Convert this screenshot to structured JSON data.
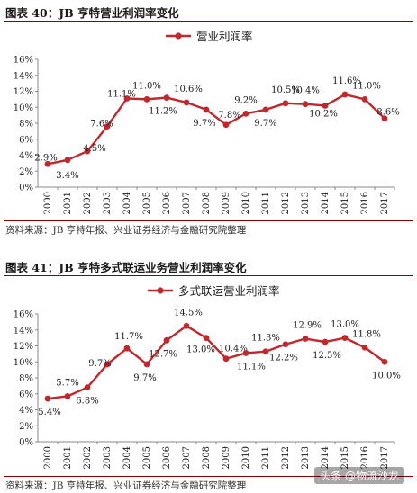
{
  "figures": [
    {
      "title": "图表 40：JB 亨特营业利润率变化",
      "source": "资料来源：JB 亨特年报、兴业证券经济与金融研究院整理"
    },
    {
      "title": "图表 41：JB 亨特多式联运业务营业利润率变化",
      "source": "资料来源：JB 亨特年报、兴业证券经济与金融研究院整理"
    }
  ],
  "watermark": "头条 @物流沙龙",
  "colors": {
    "series": "#c0282d",
    "axis": "#888888",
    "rule": "#8b0000"
  },
  "chart_data": [
    {
      "type": "line",
      "legend_position": "top",
      "grid": false,
      "categories": [
        "2000",
        "2001",
        "2002",
        "2003",
        "2004",
        "2005",
        "2006",
        "2007",
        "2008",
        "2009",
        "2010",
        "2011",
        "2012",
        "2013",
        "2014",
        "2015",
        "2016",
        "2017"
      ],
      "series": [
        {
          "name": "营业利润率",
          "values": [
            2.9,
            3.4,
            4.5,
            7.6,
            11.1,
            11.0,
            11.2,
            10.6,
            9.7,
            7.8,
            9.2,
            9.7,
            10.5,
            10.4,
            10.2,
            11.6,
            11.0,
            8.6
          ],
          "labels": [
            "2.9%",
            "3.4%",
            "4.5%",
            "7.6%",
            "11.1%",
            "11.0%",
            "11.2%",
            "10.6%",
            "9.7%",
            "7.8%",
            "9.2%",
            "9.7%",
            "10.5%",
            "10.4%",
            "10.2%",
            "11.6%",
            "11.0%",
            "8.6%"
          ]
        }
      ],
      "ylim": [
        0,
        16
      ],
      "yticks": [
        "0%",
        "2%",
        "4%",
        "6%",
        "8%",
        "10%",
        "12%",
        "14%",
        "16%"
      ]
    },
    {
      "type": "line",
      "legend_position": "top",
      "grid": false,
      "categories": [
        "2000",
        "2001",
        "2002",
        "2003",
        "2004",
        "2005",
        "2006",
        "2007",
        "2008",
        "2009",
        "2010",
        "2011",
        "2012",
        "2013",
        "2014",
        "2015",
        "2016",
        "2017"
      ],
      "series": [
        {
          "name": "多式联运营业利润率",
          "values": [
            5.4,
            5.7,
            6.8,
            9.7,
            11.7,
            9.7,
            12.7,
            14.5,
            13.0,
            10.4,
            11.1,
            11.3,
            12.2,
            12.9,
            12.5,
            13.0,
            11.8,
            10.0
          ],
          "labels": [
            "5.4%",
            "5.7%",
            "6.8%",
            "9.7%",
            "11.7%",
            "9.7%",
            "12.7%",
            "14.5%",
            "13.0%",
            "10.4%",
            "11.1%",
            "11.3%",
            "12.2%",
            "12.9%",
            "12.5%",
            "13.0%",
            "11.8%",
            "10.0%"
          ]
        }
      ],
      "ylim": [
        0,
        16
      ],
      "yticks": [
        "0%",
        "2%",
        "4%",
        "6%",
        "8%",
        "10%",
        "12%",
        "14%",
        "16%"
      ]
    }
  ]
}
